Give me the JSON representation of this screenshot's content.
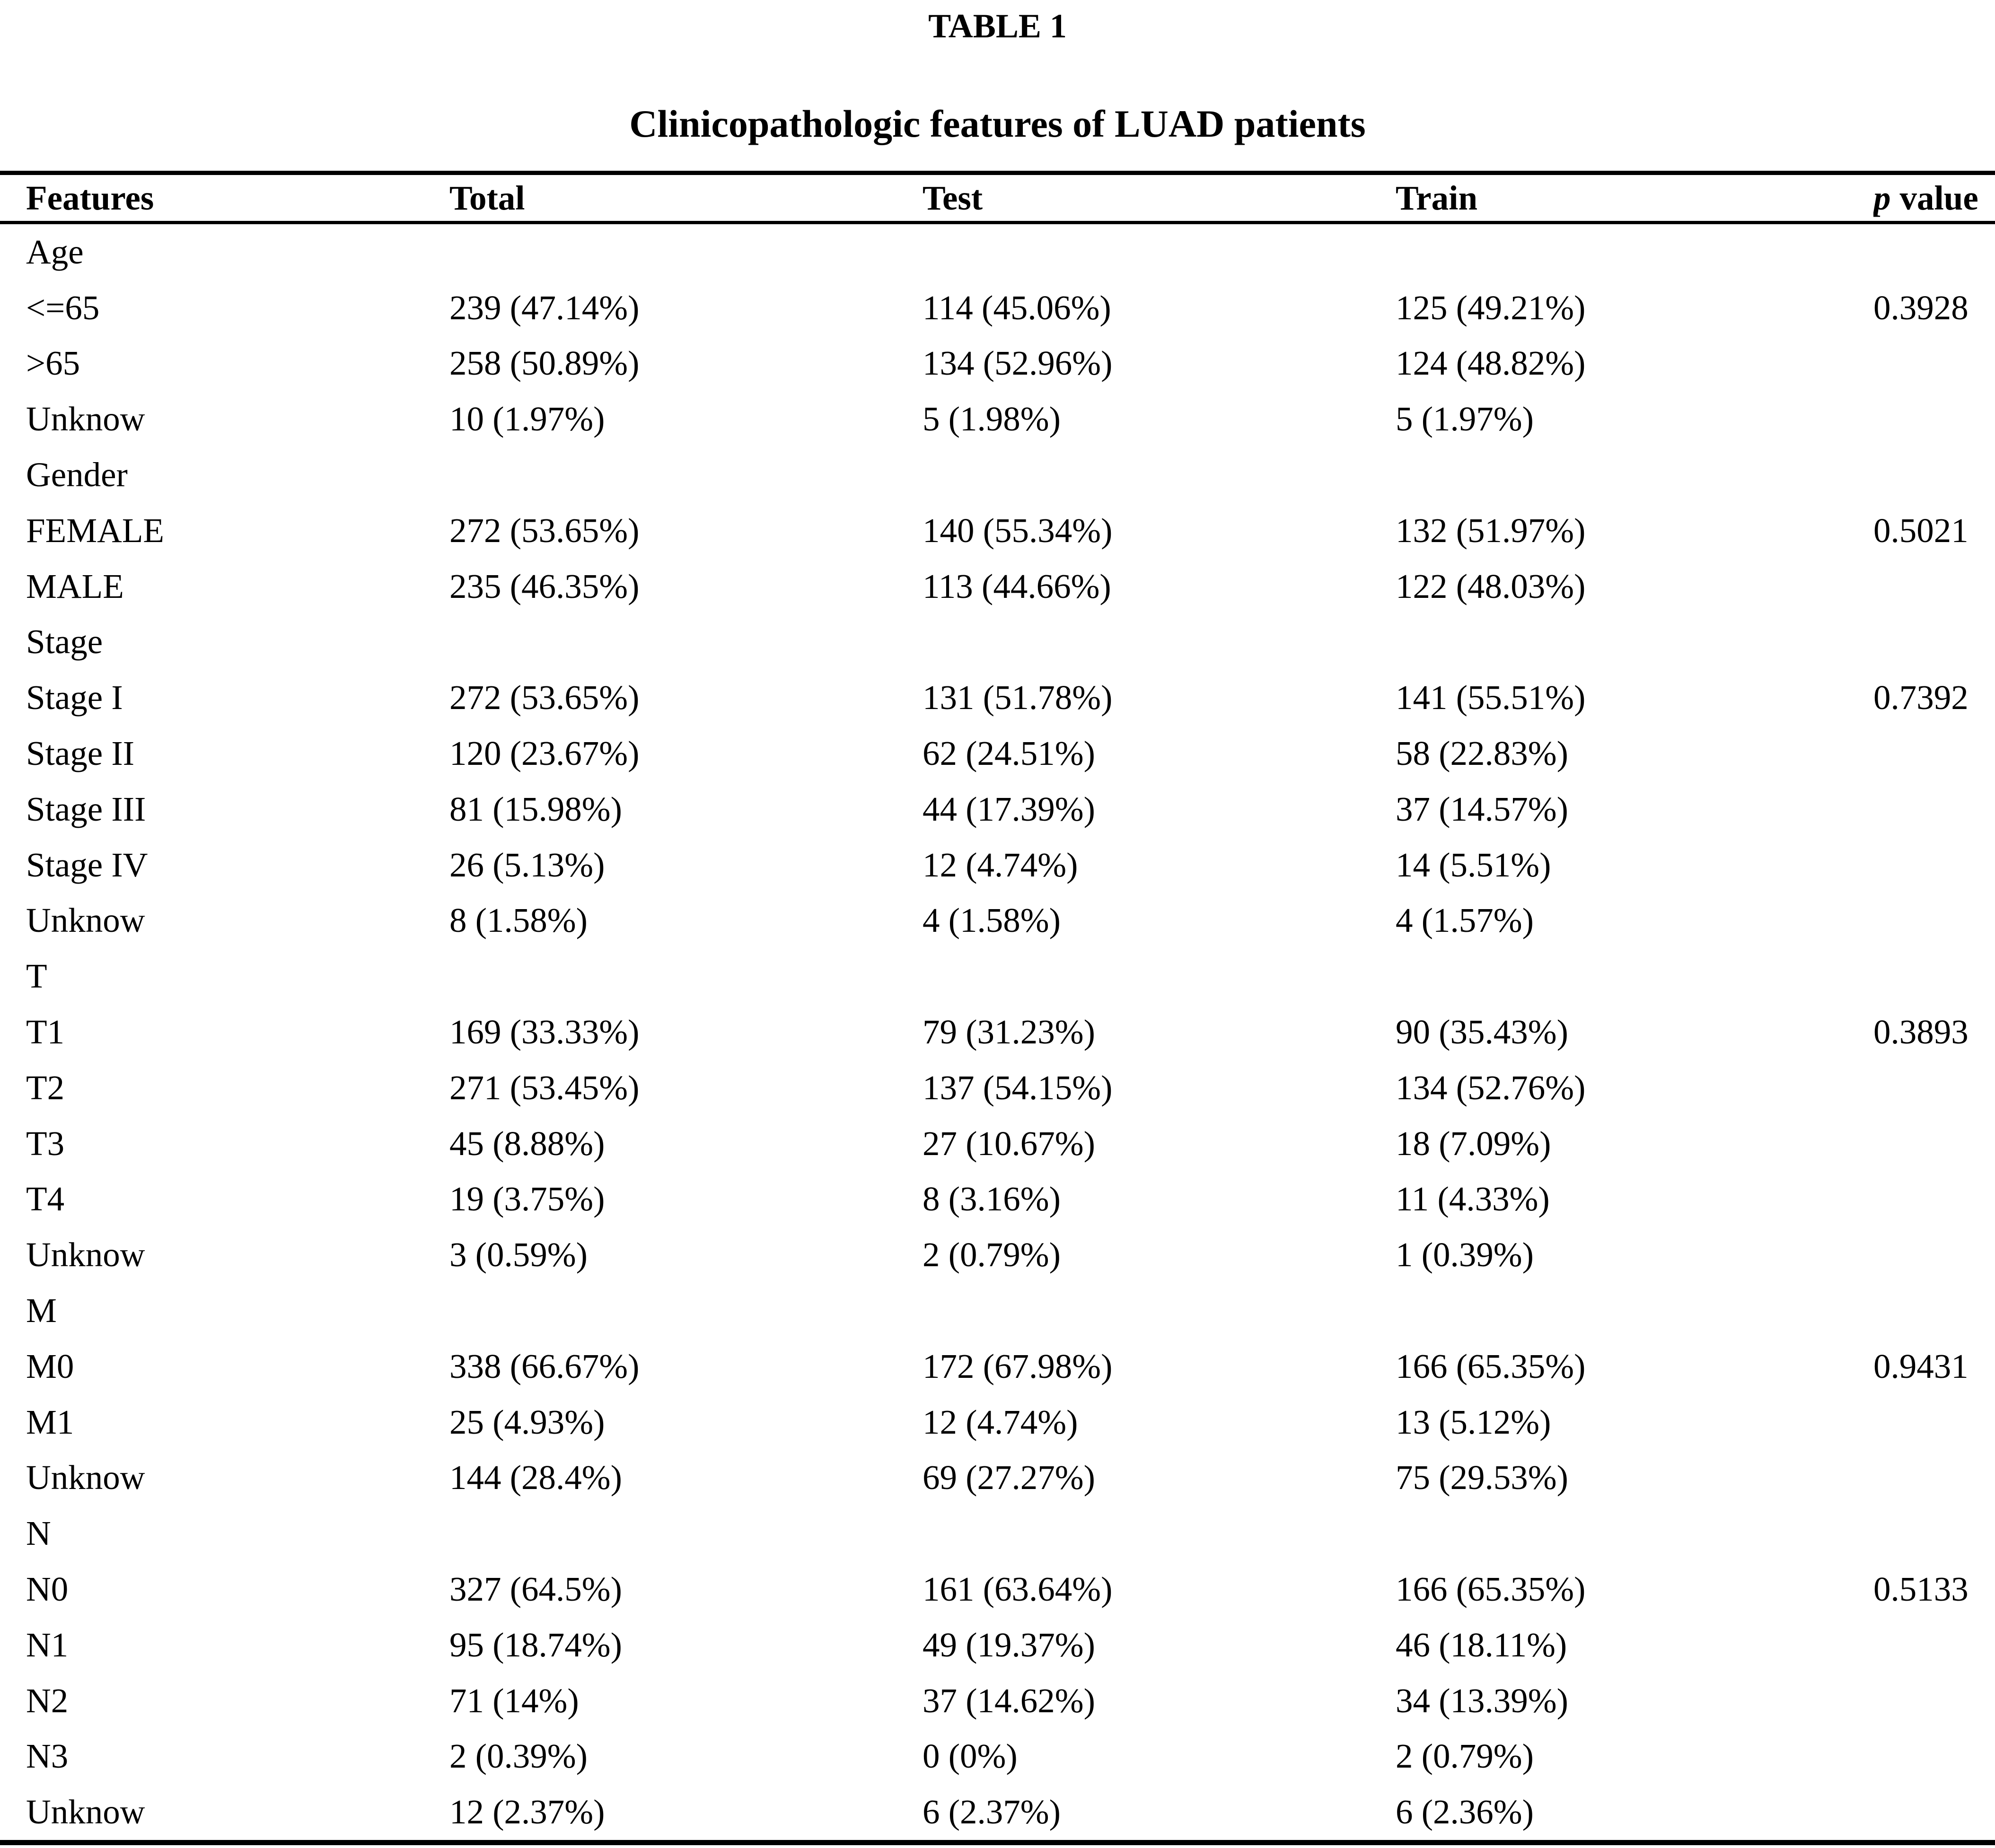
{
  "caption": "TABLE 1",
  "subtitle": "Clinicopathologic features of LUAD patients",
  "colors": {
    "text": "#000000",
    "background": "#ffffff",
    "rule": "#000000"
  },
  "table": {
    "header": {
      "features": "Features",
      "total": "Total",
      "test": "Test",
      "train": "Train",
      "p_value_italic": "p",
      "p_value_rest": "value"
    },
    "rows": [
      {
        "feature": "Age",
        "total": "",
        "test": "",
        "train": "",
        "p": ""
      },
      {
        "feature": "<=65",
        "total": "239 (47.14%)",
        "test": "114 (45.06%)",
        "train": "125 (49.21%)",
        "p": "0.3928"
      },
      {
        "feature": ">65",
        "total": "258 (50.89%)",
        "test": "134 (52.96%)",
        "train": "124 (48.82%)",
        "p": ""
      },
      {
        "feature": "Unknow",
        "total": "10 (1.97%)",
        "test": "5 (1.98%)",
        "train": "5 (1.97%)",
        "p": ""
      },
      {
        "feature": "Gender",
        "total": "",
        "test": "",
        "train": "",
        "p": ""
      },
      {
        "feature": "FEMALE",
        "total": "272 (53.65%)",
        "test": "140 (55.34%)",
        "train": "132 (51.97%)",
        "p": "0.5021"
      },
      {
        "feature": "MALE",
        "total": "235 (46.35%)",
        "test": "113 (44.66%)",
        "train": "122 (48.03%)",
        "p": ""
      },
      {
        "feature": "Stage",
        "total": "",
        "test": "",
        "train": "",
        "p": ""
      },
      {
        "feature": "Stage I",
        "total": "272 (53.65%)",
        "test": "131 (51.78%)",
        "train": "141 (55.51%)",
        "p": "0.7392"
      },
      {
        "feature": "Stage II",
        "total": "120 (23.67%)",
        "test": "62 (24.51%)",
        "train": "58 (22.83%)",
        "p": ""
      },
      {
        "feature": "Stage III",
        "total": "81 (15.98%)",
        "test": "44 (17.39%)",
        "train": "37 (14.57%)",
        "p": ""
      },
      {
        "feature": "Stage IV",
        "total": "26 (5.13%)",
        "test": "12 (4.74%)",
        "train": "14 (5.51%)",
        "p": ""
      },
      {
        "feature": "Unknow",
        "total": "8 (1.58%)",
        "test": "4 (1.58%)",
        "train": "4 (1.57%)",
        "p": ""
      },
      {
        "feature": "T",
        "total": "",
        "test": "",
        "train": "",
        "p": ""
      },
      {
        "feature": "T1",
        "total": "169 (33.33%)",
        "test": "79 (31.23%)",
        "train": "90 (35.43%)",
        "p": "0.3893"
      },
      {
        "feature": "T2",
        "total": "271 (53.45%)",
        "test": "137 (54.15%)",
        "train": "134 (52.76%)",
        "p": ""
      },
      {
        "feature": "T3",
        "total": "45 (8.88%)",
        "test": "27 (10.67%)",
        "train": "18 (7.09%)",
        "p": ""
      },
      {
        "feature": "T4",
        "total": "19 (3.75%)",
        "test": "8 (3.16%)",
        "train": "11 (4.33%)",
        "p": ""
      },
      {
        "feature": "Unknow",
        "total": "3 (0.59%)",
        "test": "2 (0.79%)",
        "train": "1 (0.39%)",
        "p": ""
      },
      {
        "feature": "M",
        "total": "",
        "test": "",
        "train": "",
        "p": ""
      },
      {
        "feature": "M0",
        "total": "338 (66.67%)",
        "test": "172 (67.98%)",
        "train": "166 (65.35%)",
        "p": "0.9431"
      },
      {
        "feature": "M1",
        "total": "25 (4.93%)",
        "test": "12 (4.74%)",
        "train": "13 (5.12%)",
        "p": ""
      },
      {
        "feature": "Unknow",
        "total": "144 (28.4%)",
        "test": "69 (27.27%)",
        "train": "75 (29.53%)",
        "p": ""
      },
      {
        "feature": "N",
        "total": "",
        "test": "",
        "train": "",
        "p": ""
      },
      {
        "feature": "N0",
        "total": "327 (64.5%)",
        "test": "161 (63.64%)",
        "train": "166 (65.35%)",
        "p": "0.5133"
      },
      {
        "feature": "N1",
        "total": "95 (18.74%)",
        "test": "49 (19.37%)",
        "train": "46 (18.11%)",
        "p": ""
      },
      {
        "feature": "N2",
        "total": "71 (14%)",
        "test": "37 (14.62%)",
        "train": "34 (13.39%)",
        "p": ""
      },
      {
        "feature": "N3",
        "total": "2 (0.39%)",
        "test": "0 (0%)",
        "train": "2 (0.79%)",
        "p": ""
      },
      {
        "feature": "Unknow",
        "total": "12 (2.37%)",
        "test": "6 (2.37%)",
        "train": "6 (2.36%)",
        "p": ""
      }
    ]
  }
}
